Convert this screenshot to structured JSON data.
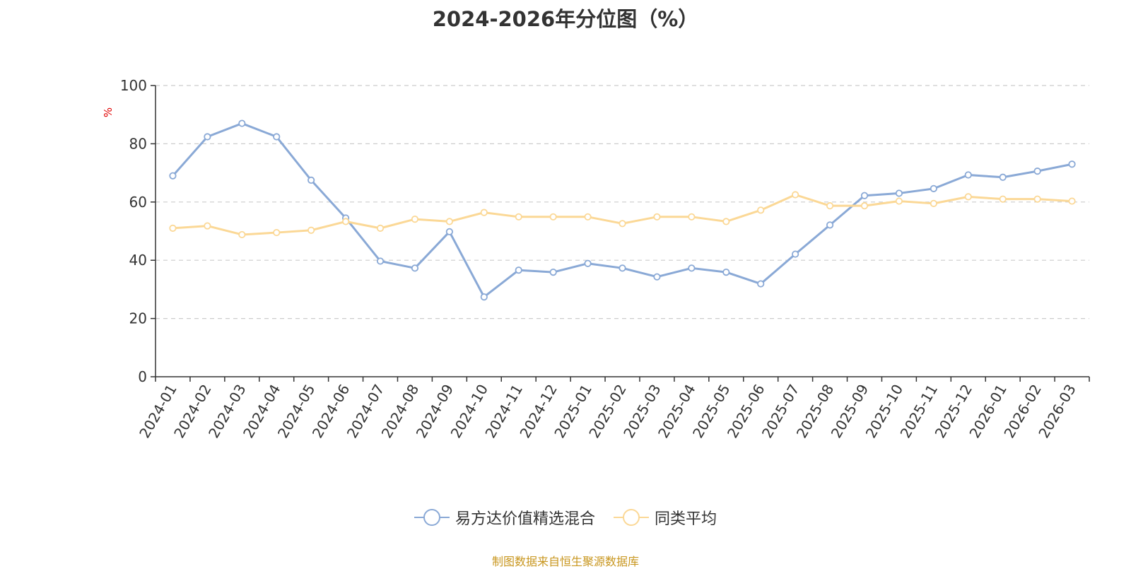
{
  "chart_data": {
    "type": "line",
    "title": "2024-2026年分位图（%）",
    "ylabel": "%",
    "ylim": [
      0,
      100
    ],
    "yticks": [
      0,
      20,
      40,
      60,
      80,
      100
    ],
    "grid": true,
    "legend_position": "bottom",
    "categories": [
      "2024-01",
      "2024-02",
      "2024-03",
      "2024-04",
      "2024-05",
      "2024-06",
      "2024-07",
      "2024-08",
      "2024-09",
      "2024-10",
      "2024-11",
      "2024-12",
      "2025-01",
      "2025-02",
      "2025-03",
      "2025-04",
      "2025-05",
      "2025-06",
      "2025-07",
      "2025-08",
      "2025-09",
      "2025-10",
      "2025-11",
      "2025-12",
      "2026-01",
      "2026-02",
      "2026-03"
    ],
    "x": [
      0.0,
      1.0,
      2.0,
      3.0,
      4.0,
      5.0,
      6.0,
      7.0,
      8.0,
      9.0,
      10.0,
      11.0,
      12.0,
      13.0,
      14.0,
      15.0,
      16.0,
      17.0,
      18.0,
      19.0,
      20.0,
      21.0,
      22.0,
      23.0,
      24.0,
      25.0,
      26.0,
      27.0
    ],
    "series": [
      {
        "name": "易方达价值精选混合",
        "color": "#8aa9d6",
        "x": [
          0.5,
          1.5,
          2.5,
          3.5,
          4.5,
          5.5,
          6.5,
          7.5,
          8.5,
          9.5,
          10.5,
          11.5,
          12.5,
          13.5,
          14.5,
          15.5,
          16.5,
          17.5,
          18.5,
          19.5,
          20.5,
          21.5,
          22.5,
          23.5,
          24.5,
          25.5,
          26.5
        ],
        "values": [
          69,
          82.4,
          87,
          82.4,
          67.5,
          54.5,
          39.7,
          37.3,
          49.8,
          27.4,
          36.6,
          35.9,
          38.9,
          37.3,
          34.3,
          37.3,
          35.9,
          31.9,
          42.1,
          52.1,
          62.2,
          63,
          64.6,
          69.3,
          68.5,
          70.6,
          73
        ]
      },
      {
        "name": "同类平均",
        "color": "#fbd896",
        "x": [
          0.5,
          1.5,
          2.5,
          3.5,
          4.5,
          5.5,
          6.5,
          7.5,
          8.5,
          9.5,
          10.5,
          11.5,
          12.5,
          13.5,
          14.5,
          15.5,
          16.5,
          17.5,
          18.5,
          19.5,
          20.5,
          21.5,
          22.5,
          23.5,
          24.5,
          25.5,
          26.5
        ],
        "values": [
          51,
          51.8,
          48.8,
          49.5,
          50.3,
          53.3,
          51,
          54.1,
          53.3,
          56.4,
          54.9,
          54.9,
          54.9,
          52.6,
          54.9,
          54.9,
          53.3,
          57.2,
          62.5,
          58.7,
          58.7,
          60.3,
          59.5,
          61.8,
          61,
          61,
          60.3
        ]
      }
    ]
  },
  "source_text": "制图数据来自恒生聚源数据库"
}
